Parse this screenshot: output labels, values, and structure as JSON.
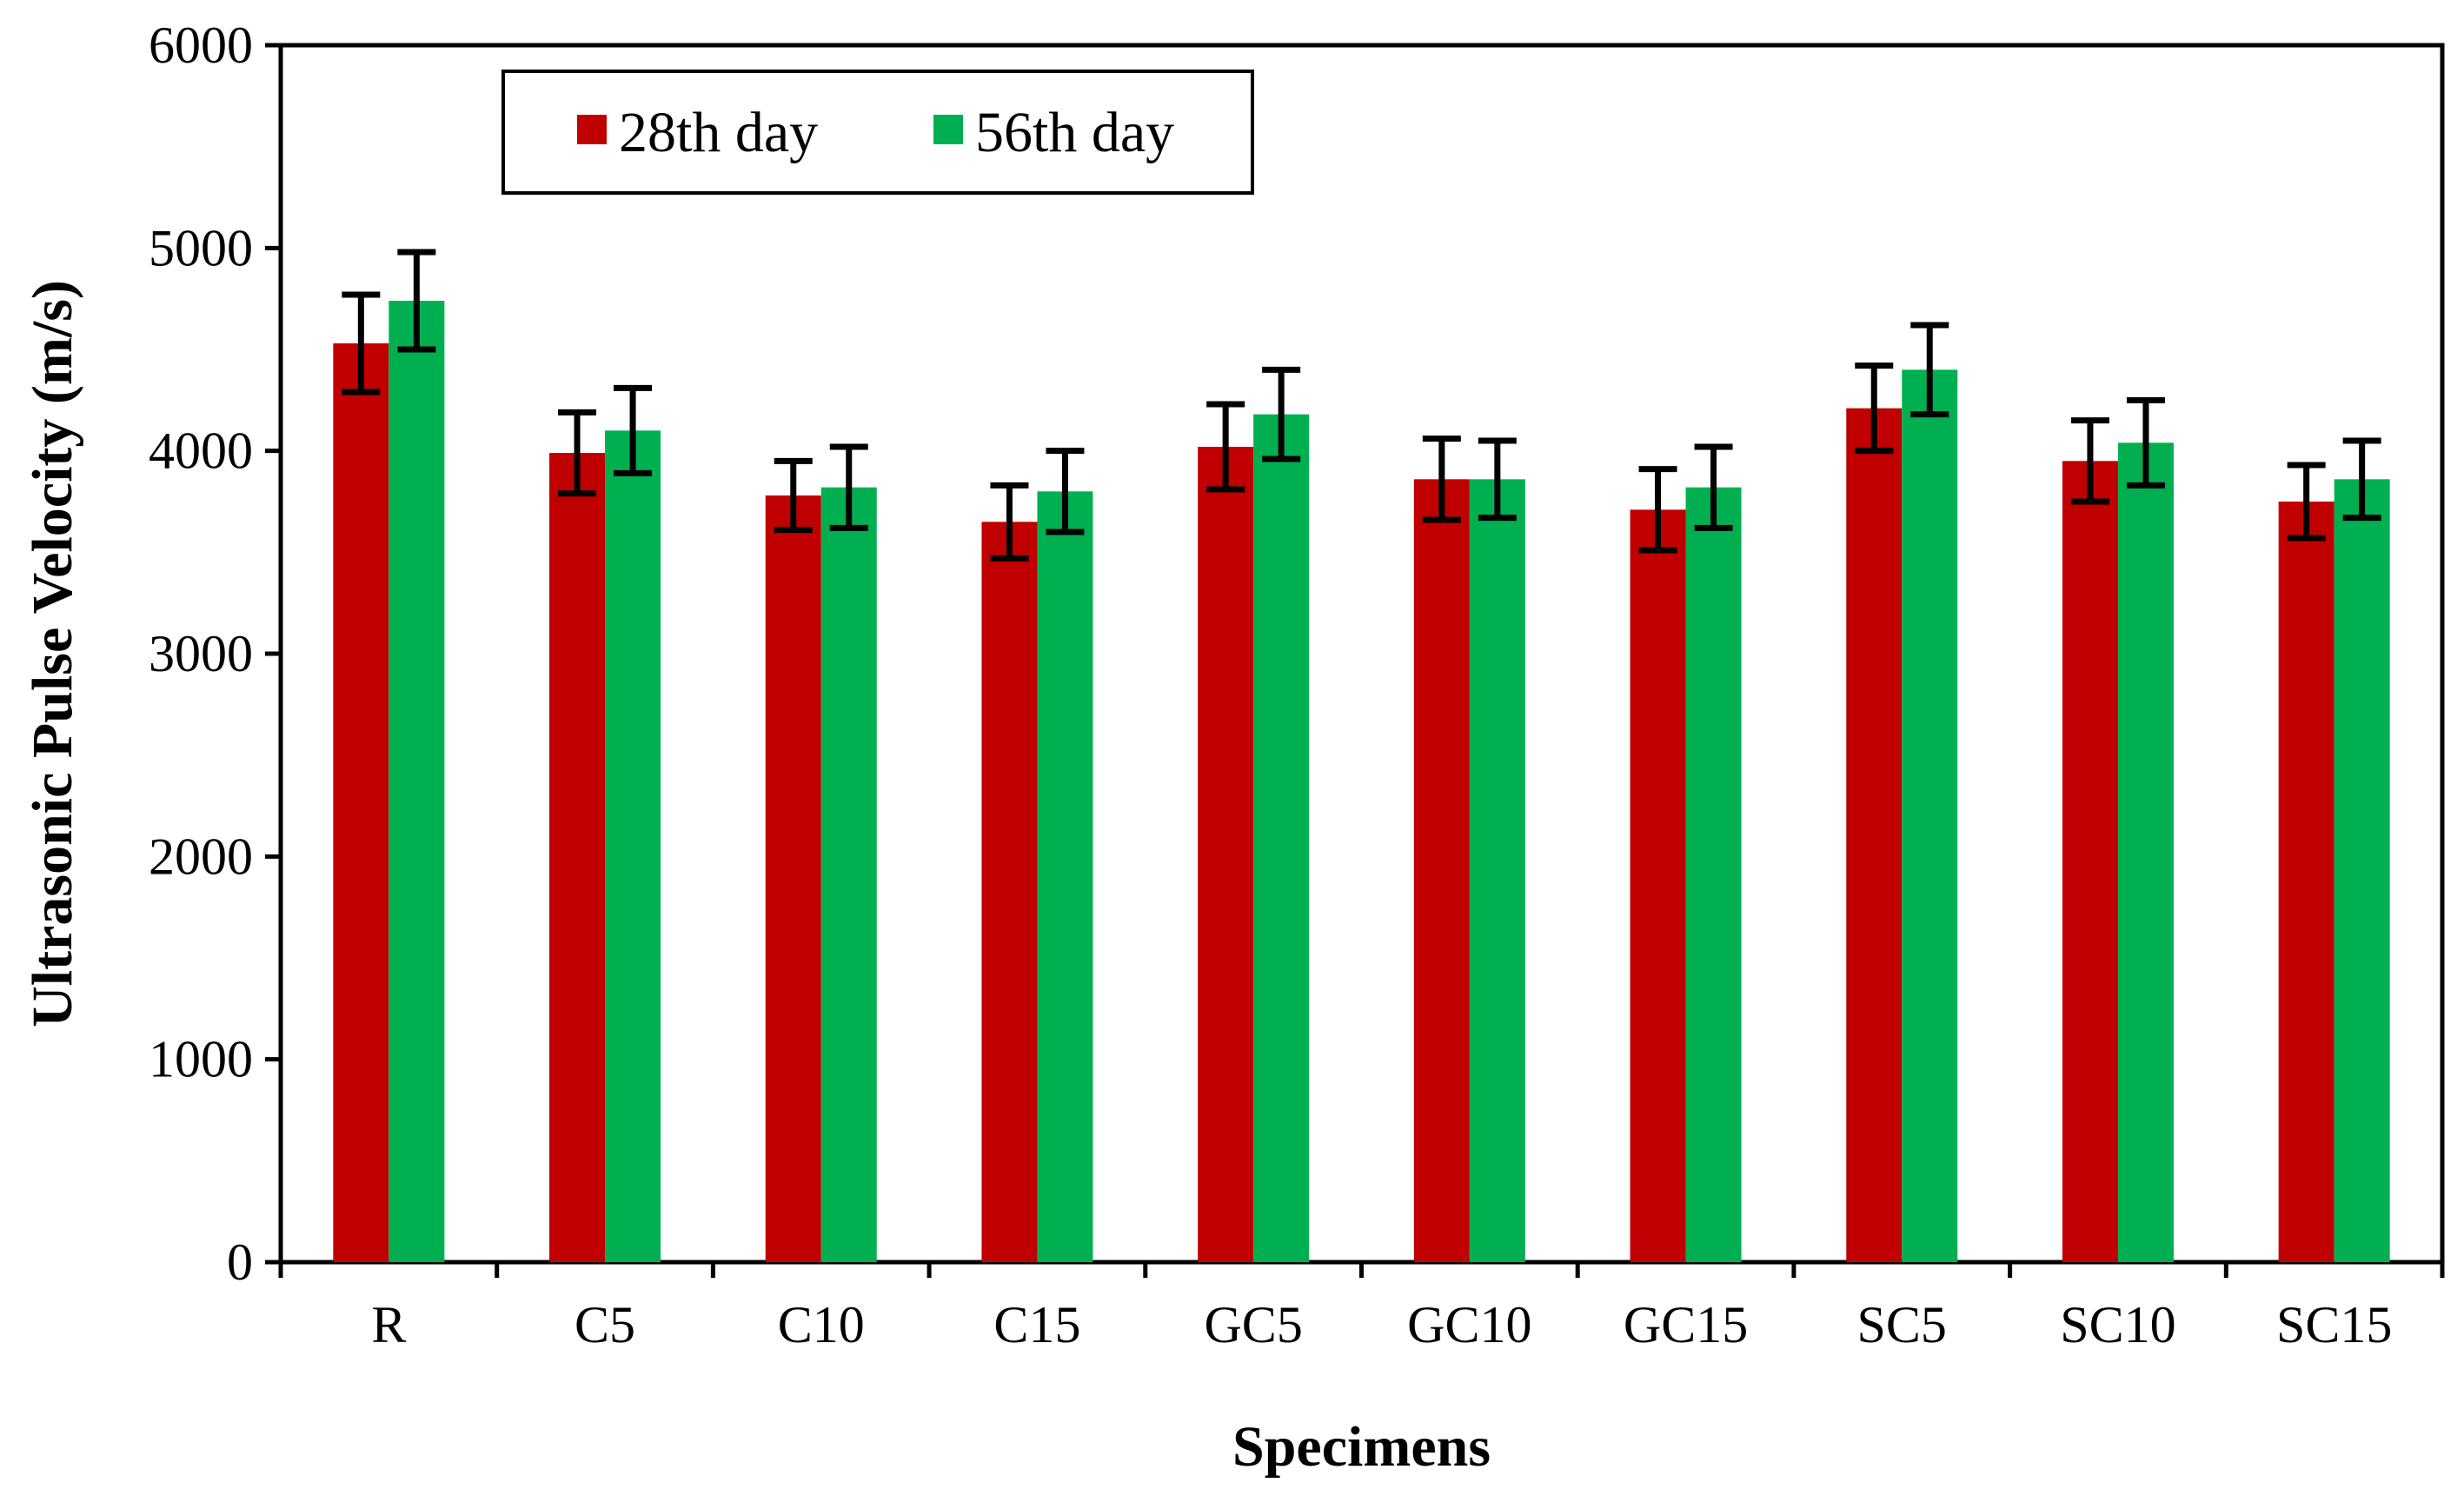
{
  "chart_data": {
    "type": "bar",
    "title": "",
    "xlabel": "Specimens",
    "ylabel": "Ultrasonic Pulse Velocity (m/s)",
    "ylim": [
      0,
      6000
    ],
    "yticks": [
      "0",
      "1000",
      "2000",
      "3000",
      "4000",
      "5000",
      "6000"
    ],
    "ytick_values": [
      0,
      1000,
      2000,
      3000,
      4000,
      5000,
      6000
    ],
    "categories": [
      "R",
      "C5",
      "C10",
      "C15",
      "GC5",
      "GC10",
      "GC15",
      "SC5",
      "SC10",
      "SC15"
    ],
    "legend_position": "top-left",
    "grid": false,
    "series": [
      {
        "name": "28th day",
        "color": "#C00000",
        "values": [
          4530,
          3990,
          3780,
          3650,
          4020,
          3860,
          3710,
          4210,
          3950,
          3750
        ],
        "errors": [
          240,
          200,
          170,
          180,
          210,
          200,
          200,
          210,
          200,
          180
        ]
      },
      {
        "name": "56th day",
        "color": "#00B050",
        "values": [
          4740,
          4100,
          3820,
          3800,
          4180,
          3860,
          3820,
          4400,
          4040,
          3860
        ],
        "errors": [
          240,
          210,
          200,
          200,
          220,
          190,
          200,
          220,
          210,
          190
        ]
      }
    ]
  }
}
